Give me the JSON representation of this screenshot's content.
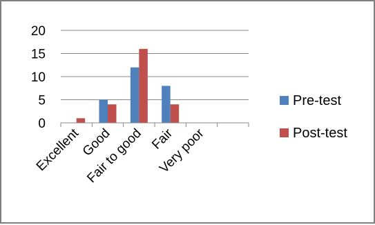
{
  "chart_data": {
    "type": "bar",
    "categories": [
      "Excellent",
      "Good",
      "Fair to good",
      "Fair",
      "Very poor"
    ],
    "series": [
      {
        "name": "Pre-test",
        "values": [
          0,
          5,
          12,
          8,
          0
        ],
        "color": "#4f81bd"
      },
      {
        "name": "Post-test",
        "values": [
          1,
          4,
          16,
          4,
          0
        ],
        "color": "#c0504d"
      }
    ],
    "ylim": [
      0,
      20
    ],
    "yticks": [
      0,
      5,
      10,
      15,
      20
    ],
    "ytick_labels": [
      "0",
      "5",
      "10",
      "15",
      "20"
    ],
    "grid": true,
    "legend_position": "right",
    "title": "",
    "xlabel": "",
    "ylabel": ""
  }
}
